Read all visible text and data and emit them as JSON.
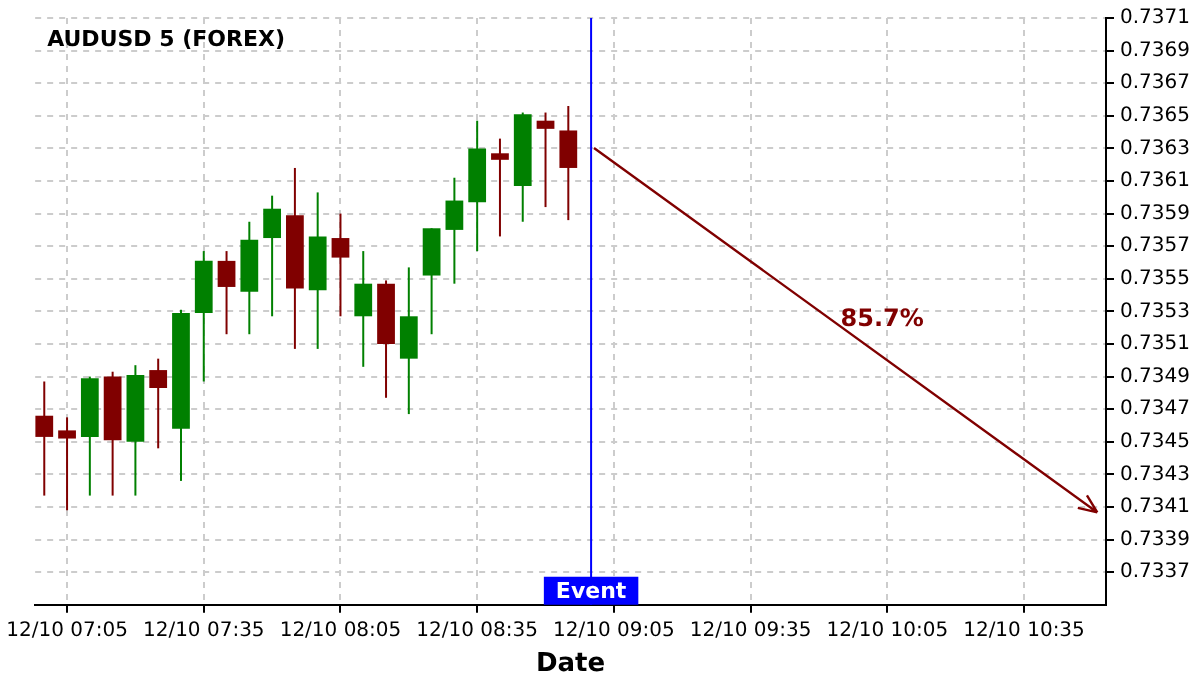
{
  "chart_data": {
    "type": "candlestick",
    "title": "AUDUSD 5 (FOREX)",
    "xlabel": "Date",
    "x": [
      "--12-10T07:00",
      "--12-10T07:05",
      "--12-10T07:10",
      "--12-10T07:15",
      "--12-10T07:20",
      "--12-10T07:25",
      "--12-10T07:30",
      "--12-10T07:35",
      "--12-10T07:40",
      "--12-10T07:45",
      "--12-10T07:50",
      "--12-10T07:55",
      "--12-10T08:00",
      "--12-10T08:05",
      "--12-10T08:10",
      "--12-10T08:15",
      "--12-10T08:20",
      "--12-10T08:25",
      "--12-10T08:30",
      "--12-10T08:35",
      "--12-10T08:40",
      "--12-10T08:45",
      "--12-10T08:50",
      "--12-10T08:55"
    ],
    "ohlc": [
      [
        0.73466,
        0.73487,
        0.73417,
        0.73453
      ],
      [
        0.73457,
        0.73465,
        0.73408,
        0.73452
      ],
      [
        0.73453,
        0.7349,
        0.73417,
        0.73489
      ],
      [
        0.7349,
        0.73493,
        0.73417,
        0.73451
      ],
      [
        0.7345,
        0.73497,
        0.73417,
        0.73491
      ],
      [
        0.73494,
        0.73501,
        0.73446,
        0.73483
      ],
      [
        0.73458,
        0.73531,
        0.73426,
        0.73529
      ],
      [
        0.73529,
        0.73567,
        0.73487,
        0.73561
      ],
      [
        0.73561,
        0.73567,
        0.73516,
        0.73545
      ],
      [
        0.73542,
        0.73585,
        0.73516,
        0.73574
      ],
      [
        0.73575,
        0.73601,
        0.73527,
        0.73593
      ],
      [
        0.73589,
        0.73618,
        0.73507,
        0.73544
      ],
      [
        0.73543,
        0.73603,
        0.73507,
        0.73576
      ],
      [
        0.73575,
        0.7359,
        0.73527,
        0.73563
      ],
      [
        0.73527,
        0.73567,
        0.73496,
        0.73547
      ],
      [
        0.73547,
        0.73549,
        0.73477,
        0.7351
      ],
      [
        0.73501,
        0.73557,
        0.73467,
        0.73527
      ],
      [
        0.73552,
        0.73581,
        0.73516,
        0.73581
      ],
      [
        0.7358,
        0.73612,
        0.73547,
        0.73598
      ],
      [
        0.73597,
        0.73647,
        0.73567,
        0.7363
      ],
      [
        0.73627,
        0.73636,
        0.73576,
        0.73623
      ],
      [
        0.73607,
        0.73652,
        0.73585,
        0.73651
      ],
      [
        0.73647,
        0.73652,
        0.73594,
        0.73642
      ],
      [
        0.73641,
        0.73656,
        0.73586,
        0.73618
      ]
    ],
    "colors": [
      "#800000",
      "#800000",
      "#008000",
      "#800000",
      "#008000",
      "#800000",
      "#008000",
      "#008000",
      "#800000",
      "#008000",
      "#008000",
      "#800000",
      "#008000",
      "#800000",
      "#008000",
      "#800000",
      "#008000",
      "#008000",
      "#008000",
      "#008000",
      "#800000",
      "#008000",
      "#800000",
      "#800000"
    ],
    "annotations": [
      "85.7%"
    ],
    "ref_lines": [
      {
        "axis": "x",
        "value": "--12-10T09:00",
        "label": "Event",
        "color": "#0000ff"
      }
    ],
    "xlim": [
      "--12-10T06:58",
      "--12-10T10:53"
    ],
    "xticks": [
      {
        "value": "--12-10T07:05",
        "label": "12/10 07:05"
      },
      {
        "value": "--12-10T07:35",
        "label": "12/10 07:35"
      },
      {
        "value": "--12-10T08:05",
        "label": "12/10 08:05"
      },
      {
        "value": "--12-10T08:35",
        "label": "12/10 08:35"
      },
      {
        "value": "--12-10T09:05",
        "label": "12/10 09:05"
      },
      {
        "value": "--12-10T09:35",
        "label": "12/10 09:35"
      },
      {
        "value": "--12-10T10:05",
        "label": "12/10 10:05"
      },
      {
        "value": "--12-10T10:35",
        "label": "12/10 10:35"
      }
    ],
    "ylim": [
      0.7335,
      0.7371
    ],
    "yticks": [
      0.7337,
      0.7339,
      0.7341,
      0.7343,
      0.7345,
      0.7347,
      0.7349,
      0.7351,
      0.7353,
      0.7355,
      0.7357,
      0.7359,
      0.7361,
      0.7363,
      0.7365,
      0.7367,
      0.7369,
      0.7371
    ],
    "grid": true,
    "legend": false
  }
}
